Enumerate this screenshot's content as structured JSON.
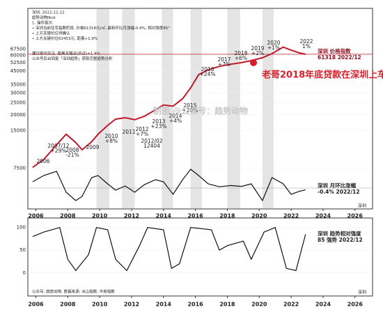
{
  "chart_data": [
    {
      "type": "line",
      "log_scale": true,
      "notes": [
        "深圳, 2022-12-22",
        "趋势动物Nick",
        "1. 操作提示:",
        "• 深圳当前住宅指数阶段, 价格61318元/㎡, 最新环比月涨幅-0.4%, 相对强度85°",
        "• 上方关键价位待确认",
        "• 上方关键价位62453元, 距离+1.9%",
        "建议密切关注, 距离关键点(买点)+1.9%",
        "公众号后台回复「深圳趋势」获取完整趋势分析"
      ],
      "callout": "老哥2018年底贷款在深圳上车",
      "watermark": "制图 @公众号：趋势动物",
      "price_label": [
        "深圳 价格指数",
        "61318 2022/12"
      ],
      "change_label": [
        "深圳 月环比涨幅",
        "-0.4% 2022/12"
      ],
      "x_axis_label": "深圳",
      "annotations": [
        "2006",
        "2007/12",
        "+29%",
        "2008",
        "-21%",
        "2009",
        "2010",
        "+8%",
        "2011",
        "2012",
        "+7%",
        "2012/02",
        "12404",
        "2013",
        "+23%",
        "2014",
        "+4%",
        "2015",
        "+26%",
        "2016",
        "+24%",
        "2017",
        "+7%",
        "2018",
        "+6%",
        "2019",
        "+2%",
        "2020",
        "+1%",
        "2022",
        "1%"
      ],
      "x": [
        2005.8,
        2006.5,
        2007.3,
        2007.9,
        2008.5,
        2008.9,
        2009.5,
        2009.9,
        2010.5,
        2011.0,
        2011.6,
        2012.2,
        2012.8,
        2013.5,
        2014.0,
        2014.6,
        2015.2,
        2015.7,
        2016.2,
        2016.8,
        2017.5,
        2018.2,
        2018.9,
        2019.5,
        2020.2,
        2020.8,
        2021.5,
        2022.0,
        2022.5,
        2022.9
      ],
      "series": [
        {
          "name": "价格指数",
          "color": "#c0182a",
          "values": [
            7600,
            8800,
            11500,
            14000,
            12000,
            10500,
            12200,
            14000,
            16500,
            18500,
            19000,
            18300,
            19500,
            22000,
            24000,
            23500,
            27000,
            33000,
            42000,
            46000,
            49000,
            51000,
            52500,
            54500,
            57500,
            62000,
            70000,
            66000,
            63000,
            61318
          ]
        },
        {
          "name": "月环比涨幅",
          "color": "#111111",
          "axis": "y2",
          "values": [
            1.5,
            3,
            4,
            -1,
            -3,
            -2,
            2.5,
            3,
            1,
            -0.5,
            0.5,
            -1,
            0.8,
            2,
            1.5,
            -1.5,
            2,
            4.5,
            3,
            1,
            0.3,
            0.6,
            0.4,
            1,
            -3,
            2.5,
            1,
            -1.5,
            -0.8,
            -0.4
          ]
        }
      ],
      "shaded_periods": [
        [
          2009.8,
          2010.6
        ],
        [
          2011.4,
          2012.2
        ],
        [
          2013.9,
          2014.6
        ],
        [
          2015.7,
          2016.4
        ],
        [
          2018.0,
          2018.8
        ],
        [
          2020.2,
          2020.9
        ]
      ],
      "xlim": [
        2005.5,
        2027.1
      ],
      "xticks": [
        2006,
        2008,
        2010,
        2012,
        2014,
        2016,
        2018,
        2020,
        2022,
        2024,
        2026
      ],
      "ylim": [
        3526,
        143000
      ],
      "yticks": [
        7500,
        15000,
        20000,
        25000,
        30000,
        35000,
        45000,
        52500,
        60000,
        67500
      ],
      "y2lim": [
        -5,
        5
      ]
    },
    {
      "type": "line",
      "label": [
        "深圳 趋势相对强度",
        "85 强势 2022/12"
      ],
      "x_axis_label": "深圳",
      "footer": "公众号: 趋势动物, 数据来源: 冰山指数, 中房指数",
      "x": [
        2005.8,
        2006.5,
        2007.5,
        2008.0,
        2008.5,
        2009.3,
        2009.8,
        2010.5,
        2011.0,
        2011.7,
        2012.5,
        2013.0,
        2014.0,
        2014.5,
        2015.0,
        2015.7,
        2017.0,
        2017.5,
        2018.0,
        2019.0,
        2019.5,
        2020.3,
        2021.0,
        2021.7,
        2022.3,
        2022.9
      ],
      "series": [
        {
          "name": "趋势相对强度",
          "color": "#111111",
          "values": [
            80,
            90,
            100,
            30,
            5,
            40,
            100,
            95,
            30,
            5,
            60,
            100,
            95,
            10,
            20,
            100,
            95,
            50,
            60,
            70,
            30,
            90,
            100,
            10,
            5,
            85
          ]
        }
      ],
      "xlim": [
        2005.5,
        2027.1
      ],
      "xticks": [
        2006,
        2008,
        2010,
        2012,
        2014,
        2016,
        2018,
        2020,
        2022,
        2024,
        2026
      ],
      "ylim": [
        -51,
        121
      ],
      "yticks": [
        0,
        50,
        100
      ]
    }
  ]
}
